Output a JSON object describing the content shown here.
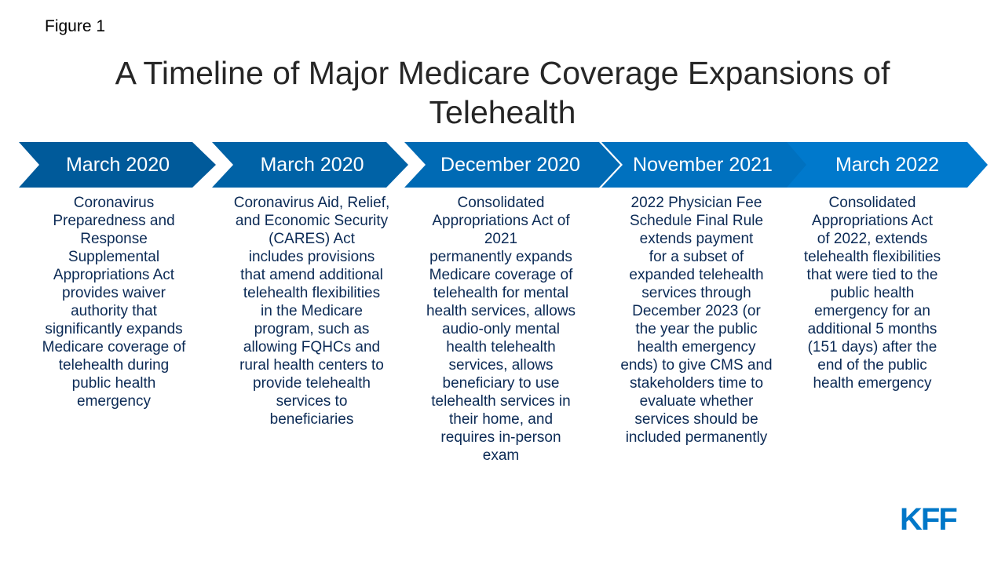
{
  "figure_label": "Figure 1",
  "title": "A Timeline of Major Medicare Coverage Expansions of\nTelehealth",
  "colors": [
    "#005a9a",
    "#0062a6",
    "#006ab4",
    "#0071bf",
    "#0079cc"
  ],
  "steps": [
    {
      "date": "March 2020",
      "text": "Coronavirus\nPreparedness and\nResponse\nSupplemental\nAppropriations Act\nprovides waiver\nauthority that\nsignificantly expands\nMedicare coverage of\ntelehealth during\npublic health\nemergency"
    },
    {
      "date": "March 2020",
      "text": "Coronavirus Aid, Relief,\nand Economic Security\n(CARES) Act\nincludes provisions\nthat amend additional\ntelehealth flexibilities\nin the Medicare\nprogram, such as\nallowing FQHCs and\nrural health centers to\nprovide telehealth\nservices to\nbeneficiaries"
    },
    {
      "date": "December 2020",
      "text": "Consolidated\nAppropriations Act of\n2021\npermanently expands\nMedicare coverage of\ntelehealth for mental\nhealth services, allows\naudio-only mental\nhealth telehealth\nservices, allows\nbeneficiary to use\ntelehealth services in\ntheir home, and\nrequires in-person\nexam"
    },
    {
      "date": "November 2021",
      "text": "2022 Physician Fee\nSchedule Final Rule\nextends payment\nfor a subset of\nexpanded telehealth\nservices through\nDecember 2023 (or\nthe year the public\nhealth emergency\nends) to give CMS and\nstakeholders time to\nevaluate whether\nservices should be\nincluded permanently"
    },
    {
      "date": "March 2022",
      "text": "Consolidated\nAppropriations Act\nof 2022, extends\ntelehealth flexibilities\nthat were tied to the\npublic health\nemergency for an\nadditional 5 months\n(151 days) after the\nend of the public\nhealth emergency"
    }
  ],
  "logo": "KFF"
}
